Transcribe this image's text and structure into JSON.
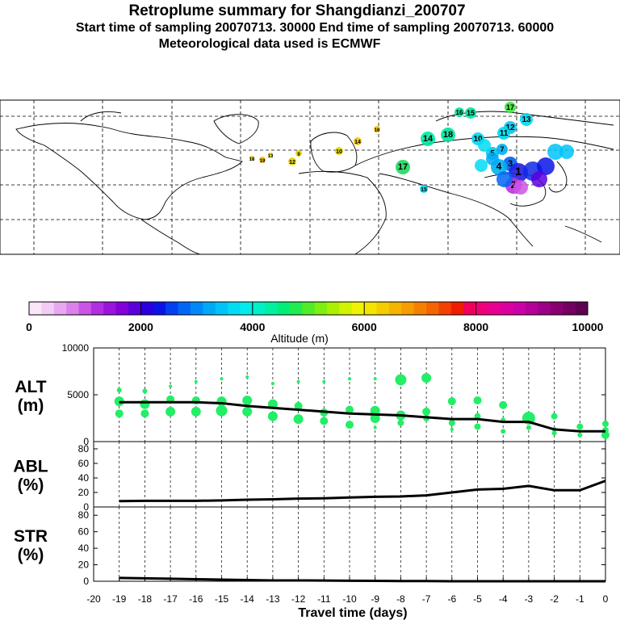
{
  "header": {
    "title": "Retroplume summary for Shangdianzi_200707",
    "sampling_line": "Start time of sampling 20070713. 30000     End time of sampling 20070713. 60000",
    "met_line": "Meteorological data used is ECMWF"
  },
  "colorbar": {
    "label": "Altitude (m)",
    "ticks": [
      "0",
      "2000",
      "4000",
      "6000",
      "8000",
      "10000"
    ],
    "colors": [
      "#f9e6f9",
      "#f2ccf5",
      "#e8a8ef",
      "#db82ea",
      "#cb55e4",
      "#b22ee0",
      "#9a14dc",
      "#8400d8",
      "#5a00dc",
      "#2a00e0",
      "#0a14e8",
      "#0040f0",
      "#0066f4",
      "#0088f6",
      "#00a8f8",
      "#00c4f8",
      "#00dcf4",
      "#00ecec",
      "#00f0c8",
      "#00f0a0",
      "#00ee78",
      "#20ec50",
      "#50ec28",
      "#80ee10",
      "#aaf000",
      "#d0f400",
      "#eef400",
      "#f4e400",
      "#f4cc00",
      "#f4b400",
      "#f49c00",
      "#f48000",
      "#f46400",
      "#f44000",
      "#f01c00",
      "#f0005a",
      "#f00078",
      "#e80090",
      "#dc00a0",
      "#cc00a8",
      "#b40098",
      "#9c0088",
      "#880070",
      "#740060",
      "#600050"
    ]
  },
  "map": {
    "labels": [
      {
        "text": "16",
        "color": "#00e6a0"
      },
      {
        "text": "15",
        "color": "#00e6a0"
      },
      {
        "text": "17",
        "color": "#3ee63a"
      },
      {
        "text": "13",
        "color": "#00d8ee"
      },
      {
        "text": "12",
        "color": "#00c8f0"
      },
      {
        "text": "14",
        "color": "#00e6a0"
      },
      {
        "text": "18",
        "color": "#00e6a0"
      },
      {
        "text": "10",
        "color": "#00d8ee"
      },
      {
        "text": "11",
        "color": "#00d8ee"
      },
      {
        "text": "5",
        "color": "#00c8f0"
      },
      {
        "text": "7",
        "color": "#00b0f0"
      },
      {
        "text": "3",
        "color": "#0060f0"
      },
      {
        "text": "4",
        "color": "#00b0f0"
      },
      {
        "text": "1",
        "color": "#2020e0"
      },
      {
        "text": "2",
        "color": "#c030e0"
      },
      {
        "text": "17",
        "color": "#20d860"
      },
      {
        "text": "15",
        "color": "#00d8ee"
      },
      {
        "text": "16",
        "color": "#f4c000"
      },
      {
        "text": "14",
        "color": "#f4c000"
      },
      {
        "text": "12",
        "color": "#e6d400"
      },
      {
        "text": "10",
        "color": "#e6d400"
      },
      {
        "text": "18",
        "color": "#e6d400"
      },
      {
        "text": "19",
        "color": "#f4c000"
      },
      {
        "text": "9",
        "color": "#e6d400"
      },
      {
        "text": "13",
        "color": "#e6d400"
      }
    ]
  },
  "chart_data": [
    {
      "type": "scatter",
      "panel": "ALT",
      "ylabel": "ALT",
      "yunit": "(m)",
      "ylim": [
        0,
        10000
      ],
      "yticks": [
        "0",
        "5000",
        "10000"
      ],
      "series": [
        {
          "name": "mean altitude",
          "x": [
            -19,
            -18,
            -17,
            -16,
            -15,
            -14,
            -13,
            -12,
            -11,
            -10,
            -9,
            -8,
            -7,
            -6,
            -5,
            -4,
            -3,
            -2,
            -1,
            0
          ],
          "values": [
            4200,
            4200,
            4200,
            4200,
            4100,
            3800,
            3600,
            3400,
            3200,
            3000,
            2900,
            2800,
            2600,
            2400,
            2400,
            2100,
            2100,
            1300,
            1100,
            1100
          ]
        },
        {
          "name": "clusters",
          "points": [
            [
              -19,
              5500
            ],
            [
              -19,
              4300
            ],
            [
              -19,
              3000
            ],
            [
              -18,
              5400
            ],
            [
              -18,
              4000
            ],
            [
              -18,
              3000
            ],
            [
              -17,
              5900
            ],
            [
              -17,
              4500
            ],
            [
              -17,
              3200
            ],
            [
              -16,
              6400
            ],
            [
              -16,
              4400
            ],
            [
              -16,
              3200
            ],
            [
              -15,
              6700
            ],
            [
              -15,
              4300
            ],
            [
              -15,
              3300
            ],
            [
              -14,
              6900
            ],
            [
              -14,
              4400
            ],
            [
              -14,
              3200
            ],
            [
              -13,
              6200
            ],
            [
              -13,
              4000
            ],
            [
              -13,
              2700
            ],
            [
              -12,
              6400
            ],
            [
              -12,
              3800
            ],
            [
              -12,
              2400
            ],
            [
              -11,
              6400
            ],
            [
              -11,
              3100
            ],
            [
              -11,
              2200
            ],
            [
              -10,
              6700
            ],
            [
              -10,
              3400
            ],
            [
              -10,
              1800
            ],
            [
              -9,
              6700
            ],
            [
              -9,
              3300
            ],
            [
              -9,
              2500
            ],
            [
              -9,
              1500
            ],
            [
              -8,
              6600
            ],
            [
              -8,
              2800
            ],
            [
              -8,
              2000
            ],
            [
              -7,
              6800
            ],
            [
              -7,
              3200
            ],
            [
              -7,
              2500
            ],
            [
              -6,
              4300
            ],
            [
              -6,
              2000
            ],
            [
              -6,
              1300
            ],
            [
              -5,
              4400
            ],
            [
              -5,
              2700
            ],
            [
              -5,
              1600
            ],
            [
              -4,
              3900
            ],
            [
              -4,
              2300
            ],
            [
              -4,
              1100
            ],
            [
              -3,
              2500
            ],
            [
              -3,
              1500
            ],
            [
              -2,
              2700
            ],
            [
              -2,
              1300
            ],
            [
              -2,
              900
            ],
            [
              -1,
              1600
            ],
            [
              -1,
              700
            ],
            [
              0,
              1900
            ],
            [
              0,
              1200
            ],
            [
              0,
              700
            ]
          ]
        }
      ]
    },
    {
      "type": "line",
      "panel": "ABL",
      "ylabel": "ABL",
      "yunit": "(%)",
      "ylim": [
        0,
        90
      ],
      "yticks": [
        "0",
        "20",
        "40",
        "60",
        "80"
      ],
      "x": [
        -19,
        -18,
        -17,
        -16,
        -15,
        -14,
        -13,
        -12,
        -11,
        -10,
        -9,
        -8,
        -7,
        -6,
        -5,
        -4,
        -3,
        -2,
        -1,
        0
      ],
      "values": [
        8,
        8.5,
        8.5,
        8.5,
        9,
        10,
        10.5,
        11.5,
        12,
        13,
        14,
        14.5,
        16,
        20,
        24,
        25,
        29,
        23,
        23,
        36
      ]
    },
    {
      "type": "line",
      "panel": "STR",
      "ylabel": "STR",
      "yunit": "(%)",
      "ylim": [
        0,
        90
      ],
      "yticks": [
        "0",
        "20",
        "40",
        "60",
        "80"
      ],
      "xlabel": "Travel time (days)",
      "xticks": [
        "-20",
        "-19",
        "-18",
        "-17",
        "-16",
        "-15",
        "-14",
        "-13",
        "-12",
        "-11",
        "-10",
        "-9",
        "-8",
        "-7",
        "-6",
        "-5",
        "-4",
        "-3",
        "-2",
        "-1",
        "0"
      ],
      "x": [
        -19,
        -18,
        -17,
        -16,
        -15,
        -14,
        -13,
        -12,
        -11,
        -10,
        -9,
        -8,
        -7,
        -6,
        -5,
        -4,
        -3,
        -2,
        -1,
        0
      ],
      "values": [
        4,
        3.5,
        3,
        2.5,
        2,
        1.5,
        1,
        1,
        0.8,
        0.6,
        0.5,
        0.3,
        0.2,
        0,
        0,
        0,
        0,
        0,
        0,
        0
      ]
    }
  ]
}
